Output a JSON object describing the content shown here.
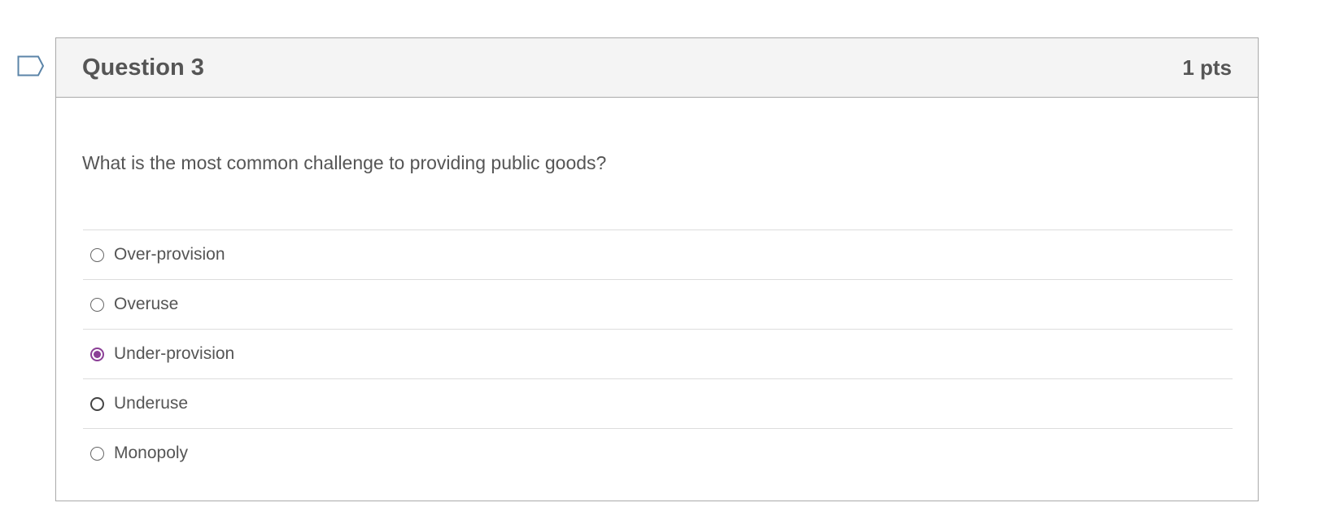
{
  "question": {
    "title": "Question 3",
    "points": "1 pts",
    "text": "What is the most common challenge to providing public goods?",
    "answers": [
      {
        "label": "Over-provision",
        "selected": false
      },
      {
        "label": "Overuse",
        "selected": false
      },
      {
        "label": "Under-provision",
        "selected": true
      },
      {
        "label": "Underuse",
        "selected": false
      },
      {
        "label": "Monopoly",
        "selected": false
      }
    ]
  },
  "colors": {
    "accent": "#8b3f96",
    "flag": "#5b84a8"
  },
  "icons": {
    "flag": "bookmark-flag-icon"
  }
}
